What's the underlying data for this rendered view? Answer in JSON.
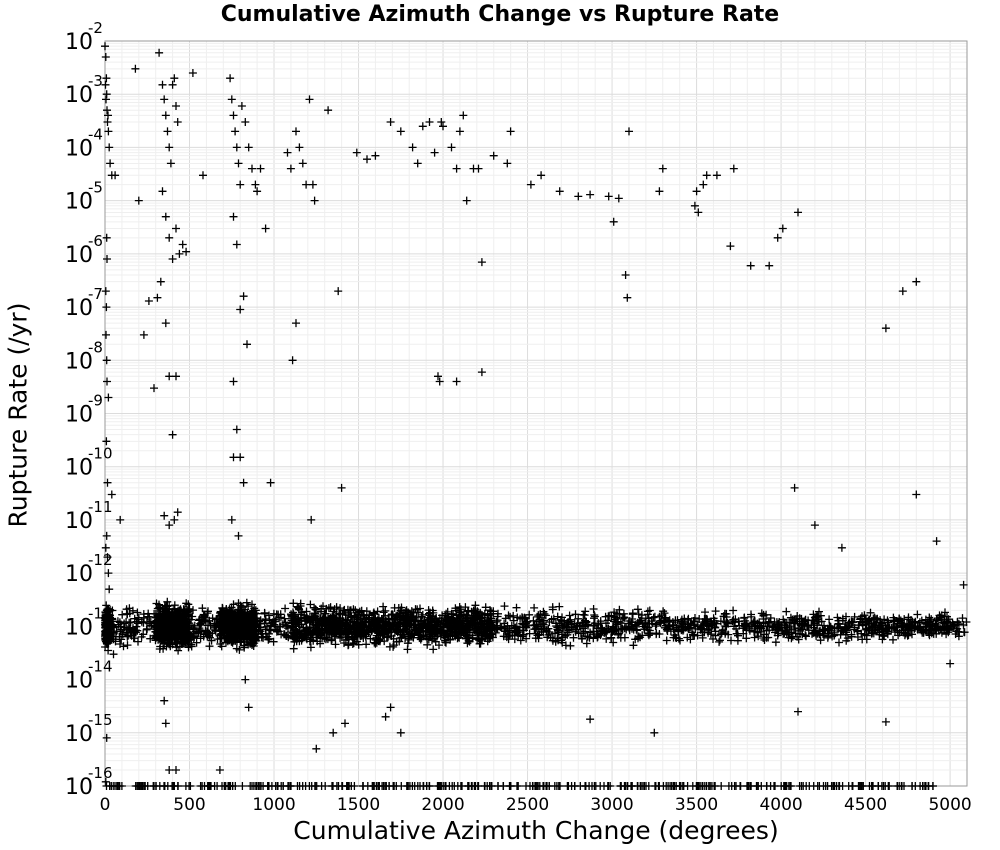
{
  "chart_data": {
    "type": "scatter",
    "title": "Cumulative Azimuth Change vs Rupture Rate",
    "xlabel": "Cumulative Azimuth Change (degrees)",
    "ylabel": "Rupture Rate (/yr)",
    "xlim": [
      0,
      5100
    ],
    "ylim": [
      1e-16,
      0.01
    ],
    "y_scale": "log",
    "grid": true,
    "marker": "+",
    "marker_color": "#000000",
    "x_ticks": [
      0,
      500,
      1000,
      1500,
      2000,
      2500,
      3000,
      3500,
      4000,
      4500,
      5000
    ],
    "y_ticks": [
      {
        "mantissa": "10",
        "exponent": "-16"
      },
      {
        "mantissa": "10",
        "exponent": "-15"
      },
      {
        "mantissa": "10",
        "exponent": "-14"
      },
      {
        "mantissa": "10",
        "exponent": "-13"
      },
      {
        "mantissa": "10",
        "exponent": "-12"
      },
      {
        "mantissa": "10",
        "exponent": "-11"
      },
      {
        "mantissa": "10",
        "exponent": "-10"
      },
      {
        "mantissa": "10",
        "exponent": "-9"
      },
      {
        "mantissa": "10",
        "exponent": "-8"
      },
      {
        "mantissa": "10",
        "exponent": "-7"
      },
      {
        "mantissa": "10",
        "exponent": "-6"
      },
      {
        "mantissa": "10",
        "exponent": "-5"
      },
      {
        "mantissa": "10",
        "exponent": "-4"
      },
      {
        "mantissa": "10",
        "exponent": "-3"
      },
      {
        "mantissa": "10",
        "exponent": "-2"
      }
    ],
    "series": [
      {
        "points": [
          [
            0,
            0.008
          ],
          [
            5,
            0.005
          ],
          [
            8,
            0.002
          ],
          [
            10,
            0.001
          ],
          [
            12,
            0.0005
          ],
          [
            15,
            0.0003
          ],
          [
            20,
            0.0002
          ],
          [
            25,
            0.0001
          ],
          [
            30,
            5e-05
          ],
          [
            3,
            0.0015
          ],
          [
            6,
            0.0008
          ],
          [
            18,
            0.0004
          ],
          [
            40,
            3e-05
          ],
          [
            60,
            3e-05
          ],
          [
            10,
            2e-06
          ],
          [
            12,
            8e-07
          ],
          [
            5,
            2e-07
          ],
          [
            8,
            1e-07
          ],
          [
            6,
            3e-08
          ],
          [
            10,
            1e-08
          ],
          [
            12,
            4e-09
          ],
          [
            20,
            2e-09
          ],
          [
            8,
            3e-10
          ],
          [
            15,
            5e-11
          ],
          [
            40,
            3e-11
          ],
          [
            90,
            1e-11
          ],
          [
            10,
            5e-12
          ],
          [
            5,
            3e-12
          ],
          [
            15,
            2e-12
          ],
          [
            20,
            1e-12
          ],
          [
            25,
            5e-13
          ],
          [
            50,
            3e-14
          ],
          [
            10,
            8e-16
          ],
          [
            5,
            1.2e-16
          ],
          [
            180,
            0.003
          ],
          [
            200,
            1e-05
          ],
          [
            230,
            3e-08
          ],
          [
            260,
            1.3e-07
          ],
          [
            290,
            3e-09
          ],
          [
            310,
            1.5e-07
          ],
          [
            320,
            0.006
          ],
          [
            330,
            3e-07
          ],
          [
            340,
            0.0015
          ],
          [
            350,
            0.0008
          ],
          [
            360,
            0.0004
          ],
          [
            370,
            0.0002
          ],
          [
            380,
            0.0001
          ],
          [
            390,
            5e-05
          ],
          [
            400,
            0.0015
          ],
          [
            410,
            0.002
          ],
          [
            420,
            0.0006
          ],
          [
            430,
            0.0003
          ],
          [
            340,
            1.5e-05
          ],
          [
            360,
            5e-06
          ],
          [
            380,
            2e-06
          ],
          [
            400,
            8e-07
          ],
          [
            420,
            3e-06
          ],
          [
            440,
            1e-06
          ],
          [
            460,
            1.5e-06
          ],
          [
            480,
            1.1e-06
          ],
          [
            360,
            5e-08
          ],
          [
            380,
            5e-09
          ],
          [
            400,
            4e-10
          ],
          [
            420,
            5e-09
          ],
          [
            350,
            1.2e-11
          ],
          [
            380,
            8e-12
          ],
          [
            410,
            1e-11
          ],
          [
            430,
            1.4e-11
          ],
          [
            350,
            4e-15
          ],
          [
            360,
            1.5e-15
          ],
          [
            380,
            2e-16
          ],
          [
            420,
            2e-16
          ],
          [
            520,
            0.0025
          ],
          [
            580,
            3e-05
          ],
          [
            680,
            2e-16
          ],
          [
            740,
            0.002
          ],
          [
            750,
            0.0008
          ],
          [
            760,
            0.0004
          ],
          [
            770,
            0.0002
          ],
          [
            780,
            0.0001
          ],
          [
            790,
            5e-05
          ],
          [
            800,
            2e-05
          ],
          [
            810,
            0.0006
          ],
          [
            830,
            0.0003
          ],
          [
            850,
            0.0001
          ],
          [
            870,
            4e-05
          ],
          [
            890,
            2e-05
          ],
          [
            760,
            5e-06
          ],
          [
            780,
            1.5e-06
          ],
          [
            800,
            9e-08
          ],
          [
            820,
            1.6e-07
          ],
          [
            840,
            2e-08
          ],
          [
            760,
            4e-09
          ],
          [
            780,
            5e-10
          ],
          [
            760,
            1.5e-10
          ],
          [
            800,
            1.5e-10
          ],
          [
            820,
            5e-11
          ],
          [
            750,
            1e-11
          ],
          [
            790,
            5e-12
          ],
          [
            920,
            4e-05
          ],
          [
            950,
            3e-06
          ],
          [
            980,
            5e-11
          ],
          [
            900,
            1.5e-05
          ],
          [
            830,
            1e-14
          ],
          [
            850,
            3e-15
          ],
          [
            1080,
            8e-05
          ],
          [
            1100,
            4e-05
          ],
          [
            1130,
            0.0002
          ],
          [
            1150,
            0.0001
          ],
          [
            1170,
            5e-05
          ],
          [
            1190,
            2e-05
          ],
          [
            1210,
            0.0008
          ],
          [
            1230,
            2e-05
          ],
          [
            1240,
            1e-05
          ],
          [
            1110,
            1e-08
          ],
          [
            1130,
            5e-08
          ],
          [
            1220,
            1e-11
          ],
          [
            1250,
            5e-16
          ],
          [
            1320,
            0.0005
          ],
          [
            1380,
            2e-07
          ],
          [
            1400,
            4e-11
          ],
          [
            1350,
            1e-15
          ],
          [
            1420,
            1.5e-15
          ],
          [
            1490,
            8e-05
          ],
          [
            1550,
            6e-05
          ],
          [
            1600,
            7e-05
          ],
          [
            1690,
            0.0003
          ],
          [
            1750,
            0.0002
          ],
          [
            1820,
            0.0001
          ],
          [
            1850,
            5e-05
          ],
          [
            1880,
            0.00025
          ],
          [
            1920,
            0.0003
          ],
          [
            1950,
            8e-05
          ],
          [
            1990,
            0.0003
          ],
          [
            2000,
            0.00025
          ],
          [
            2050,
            0.0001
          ],
          [
            2080,
            4e-05
          ],
          [
            2100,
            0.0002
          ],
          [
            2120,
            0.0004
          ],
          [
            2140,
            1e-05
          ],
          [
            2180,
            4e-05
          ],
          [
            2210,
            4e-05
          ],
          [
            1970,
            5e-09
          ],
          [
            1980,
            4e-09
          ],
          [
            2080,
            4e-09
          ],
          [
            2230,
            6e-09
          ],
          [
            2230,
            7e-07
          ],
          [
            2300,
            7e-05
          ],
          [
            2380,
            5e-05
          ],
          [
            2400,
            0.0002
          ],
          [
            1660,
            2e-15
          ],
          [
            1750,
            1e-15
          ],
          [
            1690,
            3e-15
          ],
          [
            2520,
            2e-05
          ],
          [
            2580,
            3e-05
          ],
          [
            2690,
            1.5e-05
          ],
          [
            2800,
            1.2e-05
          ],
          [
            2870,
            1.3e-05
          ],
          [
            2980,
            1.2e-05
          ],
          [
            3010,
            4e-06
          ],
          [
            3040,
            1.1e-05
          ],
          [
            3080,
            4e-07
          ],
          [
            3090,
            1.5e-07
          ],
          [
            3100,
            0.0002
          ],
          [
            3280,
            1.5e-05
          ],
          [
            3300,
            4e-05
          ],
          [
            3490,
            8e-06
          ],
          [
            3500,
            1.5e-05
          ],
          [
            3510,
            6e-06
          ],
          [
            3540,
            2e-05
          ],
          [
            3560,
            3e-05
          ],
          [
            3620,
            3e-05
          ],
          [
            3720,
            4e-05
          ],
          [
            3700,
            1.4e-06
          ],
          [
            3820,
            6e-07
          ],
          [
            3930,
            6e-07
          ],
          [
            3980,
            2e-06
          ],
          [
            4010,
            3e-06
          ],
          [
            4100,
            6e-06
          ],
          [
            4080,
            4e-11
          ],
          [
            4200,
            8e-12
          ],
          [
            4360,
            3e-12
          ],
          [
            4620,
            4e-08
          ],
          [
            4720,
            2e-07
          ],
          [
            4800,
            3e-07
          ],
          [
            4800,
            3e-11
          ],
          [
            4920,
            4e-12
          ],
          [
            5000,
            2e-14
          ],
          [
            5080,
            6e-13
          ],
          [
            3250,
            1e-15
          ],
          [
            2870,
            1.8e-15
          ],
          [
            4100,
            2.5e-15
          ],
          [
            4620,
            1.6e-15
          ]
        ]
      }
    ],
    "bands": [
      {
        "x_range": [
          0,
          5100
        ],
        "y_center": 1e-13,
        "count": 1800
      },
      {
        "x_range": [
          300,
          500
        ],
        "y_center": 1e-13,
        "count": 500
      },
      {
        "x_range": [
          680,
          900
        ],
        "y_center": 1e-13,
        "count": 500
      },
      {
        "x_range": [
          1100,
          2300
        ],
        "y_center": 1e-13,
        "count": 700
      },
      {
        "x_range": [
          0,
          30
        ],
        "y_center": 1e-13,
        "count": 200
      },
      {
        "x_range": [
          0,
          4900
        ],
        "y_center": 1e-16,
        "count": 400
      }
    ]
  }
}
